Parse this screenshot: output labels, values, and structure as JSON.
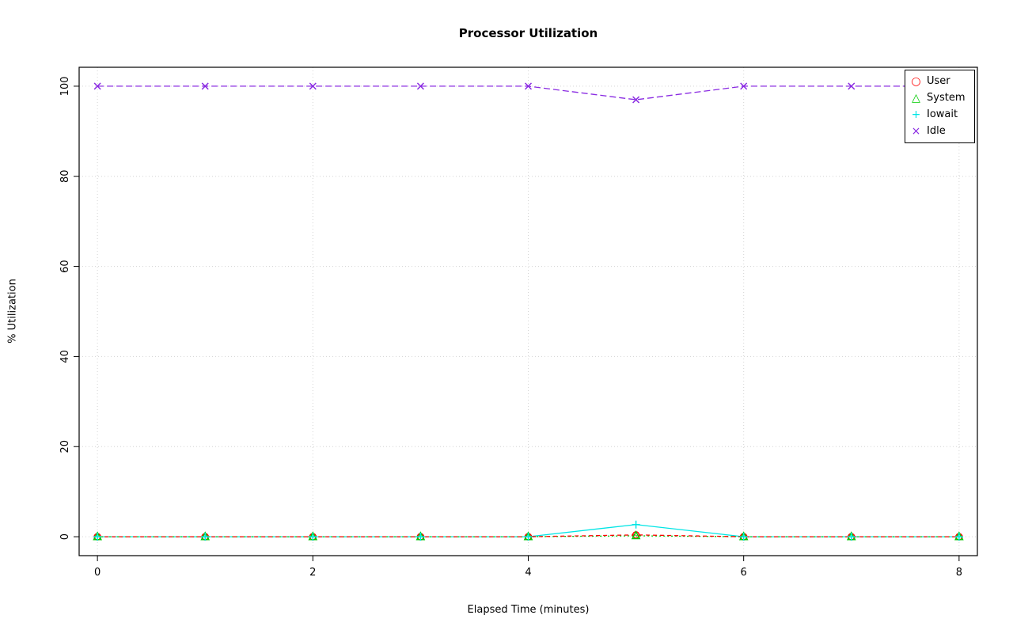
{
  "chart_data": {
    "type": "line",
    "title": "Processor Utilization",
    "xlabel": "Elapsed Time (minutes)",
    "ylabel": "% Utilization",
    "x": [
      0,
      1,
      2,
      3,
      4,
      5,
      6,
      7,
      8
    ],
    "xlim": [
      0,
      8
    ],
    "ylim": [
      0,
      100
    ],
    "xticks": [
      0,
      2,
      4,
      6,
      8
    ],
    "yticks": [
      0,
      20,
      40,
      60,
      80,
      100
    ],
    "grid": true,
    "grid_color": "#d4d4d4",
    "legend_position": "top-right",
    "series": [
      {
        "name": "User",
        "color": "#ff0000",
        "marker": "circle",
        "dash": "5 4",
        "values": [
          0,
          0,
          0,
          0,
          0,
          0.4,
          0,
          0,
          0
        ]
      },
      {
        "name": "System",
        "color": "#00cc00",
        "marker": "triangle",
        "dash": "2 3",
        "values": [
          0,
          0,
          0,
          0,
          0,
          0.2,
          0,
          0,
          0
        ]
      },
      {
        "name": "Iowait",
        "color": "#00e5e5",
        "marker": "plus",
        "dash": "",
        "values": [
          0,
          0,
          0,
          0,
          0,
          2.7,
          0,
          0,
          0
        ]
      },
      {
        "name": "Idle",
        "color": "#8a2be2",
        "marker": "x",
        "dash": "8 4",
        "values": [
          100,
          100,
          100,
          100,
          100,
          97,
          100,
          100,
          100
        ]
      }
    ]
  }
}
